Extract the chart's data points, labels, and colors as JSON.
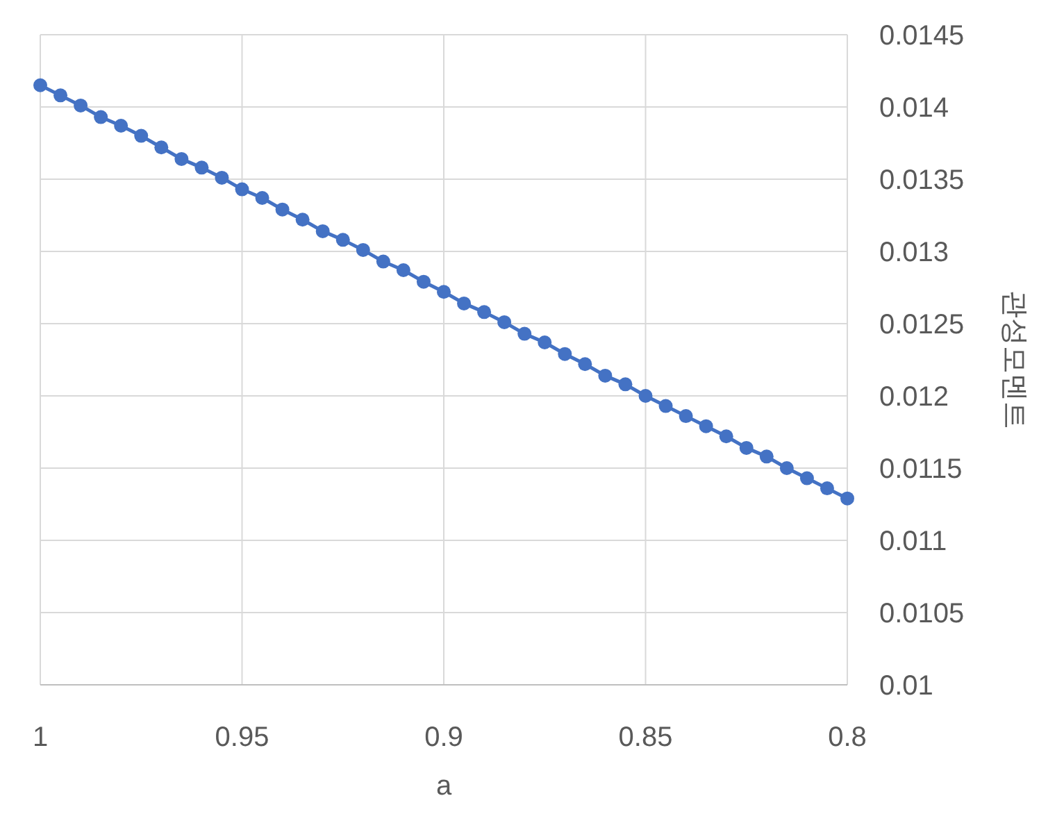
{
  "chart_data": {
    "type": "line",
    "xlabel": "a",
    "y2label": "관성모멘트",
    "x": [
      1,
      0.995,
      0.99,
      0.985,
      0.98,
      0.975,
      0.97,
      0.965,
      0.96,
      0.955,
      0.95,
      0.945,
      0.94,
      0.935,
      0.93,
      0.925,
      0.92,
      0.915,
      0.91,
      0.905,
      0.9,
      0.895,
      0.89,
      0.885,
      0.88,
      0.875,
      0.87,
      0.865,
      0.86,
      0.855,
      0.85,
      0.845,
      0.84,
      0.835,
      0.83,
      0.825,
      0.82,
      0.815,
      0.81,
      0.805,
      0.8
    ],
    "series": [
      {
        "color": "#4472c4",
        "axis": "y2",
        "values": [
          0.01415,
          0.01408,
          0.01401,
          0.01393,
          0.01387,
          0.0138,
          0.01372,
          0.01364,
          0.01358,
          0.01351,
          0.01343,
          0.01337,
          0.01329,
          0.01322,
          0.01314,
          0.01308,
          0.01301,
          0.01293,
          0.01287,
          0.01279,
          0.01272,
          0.01264,
          0.01258,
          0.01251,
          0.01243,
          0.01237,
          0.01229,
          0.01222,
          0.01214,
          0.01208,
          0.012,
          0.01193,
          0.01186,
          0.01179,
          0.01172,
          0.01164,
          0.01158,
          0.0115,
          0.01143,
          0.01136,
          0.01129
        ]
      }
    ],
    "xlim": [
      1,
      0.8
    ],
    "xticks": [
      1,
      0.95,
      0.9,
      0.85,
      0.8
    ],
    "y2lim": [
      0.01,
      0.0145
    ],
    "y2ticks": [
      0.01,
      0.0105,
      0.011,
      0.0115,
      0.012,
      0.0125,
      0.013,
      0.0135,
      0.014,
      0.0145
    ],
    "grid": true,
    "marker": "circle",
    "line_style": "solid"
  }
}
